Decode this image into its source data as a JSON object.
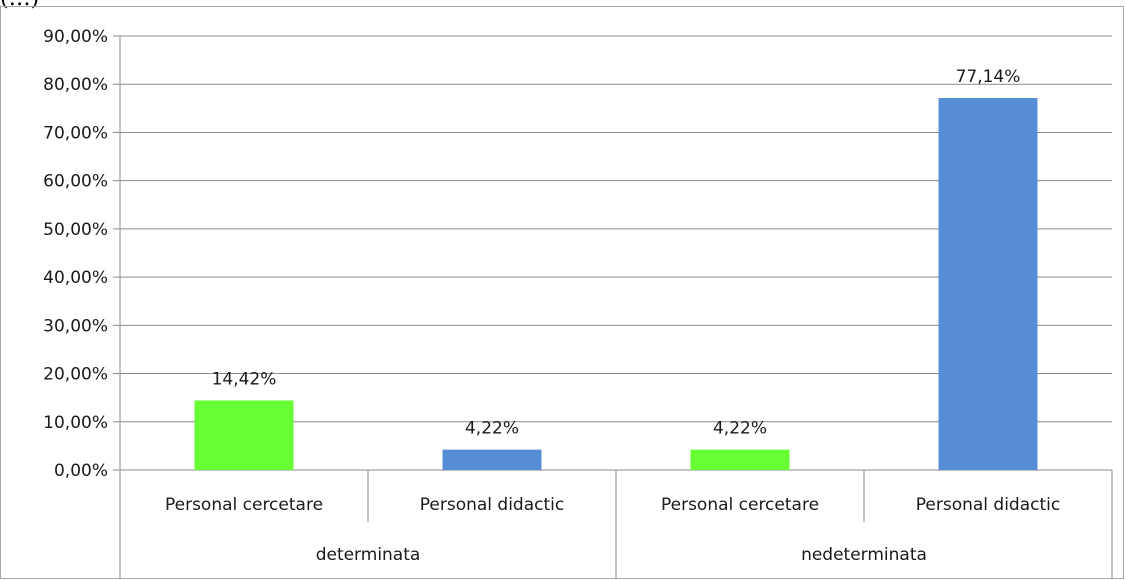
{
  "top_fragment": "(…)",
  "chart_data": {
    "type": "bar",
    "title": "",
    "xlabel": "",
    "ylabel": "",
    "ylim": [
      0,
      90
    ],
    "y_ticks": [
      "0,00%",
      "10,00%",
      "20,00%",
      "30,00%",
      "40,00%",
      "50,00%",
      "60,00%",
      "70,00%",
      "80,00%",
      "90,00%"
    ],
    "groups": [
      "determinata",
      "nedeterminata"
    ],
    "categories": [
      "Personal cercetare",
      "Personal didactic",
      "Personal cercetare",
      "Personal didactic"
    ],
    "values": [
      14.42,
      4.22,
      4.22,
      77.14
    ],
    "value_labels": [
      "14,42%",
      "4,22%",
      "4,22%",
      "77,14%"
    ],
    "colors": [
      "#66ff33",
      "#558ed5",
      "#66ff33",
      "#558ed5"
    ],
    "grid": true,
    "legend": "none"
  }
}
